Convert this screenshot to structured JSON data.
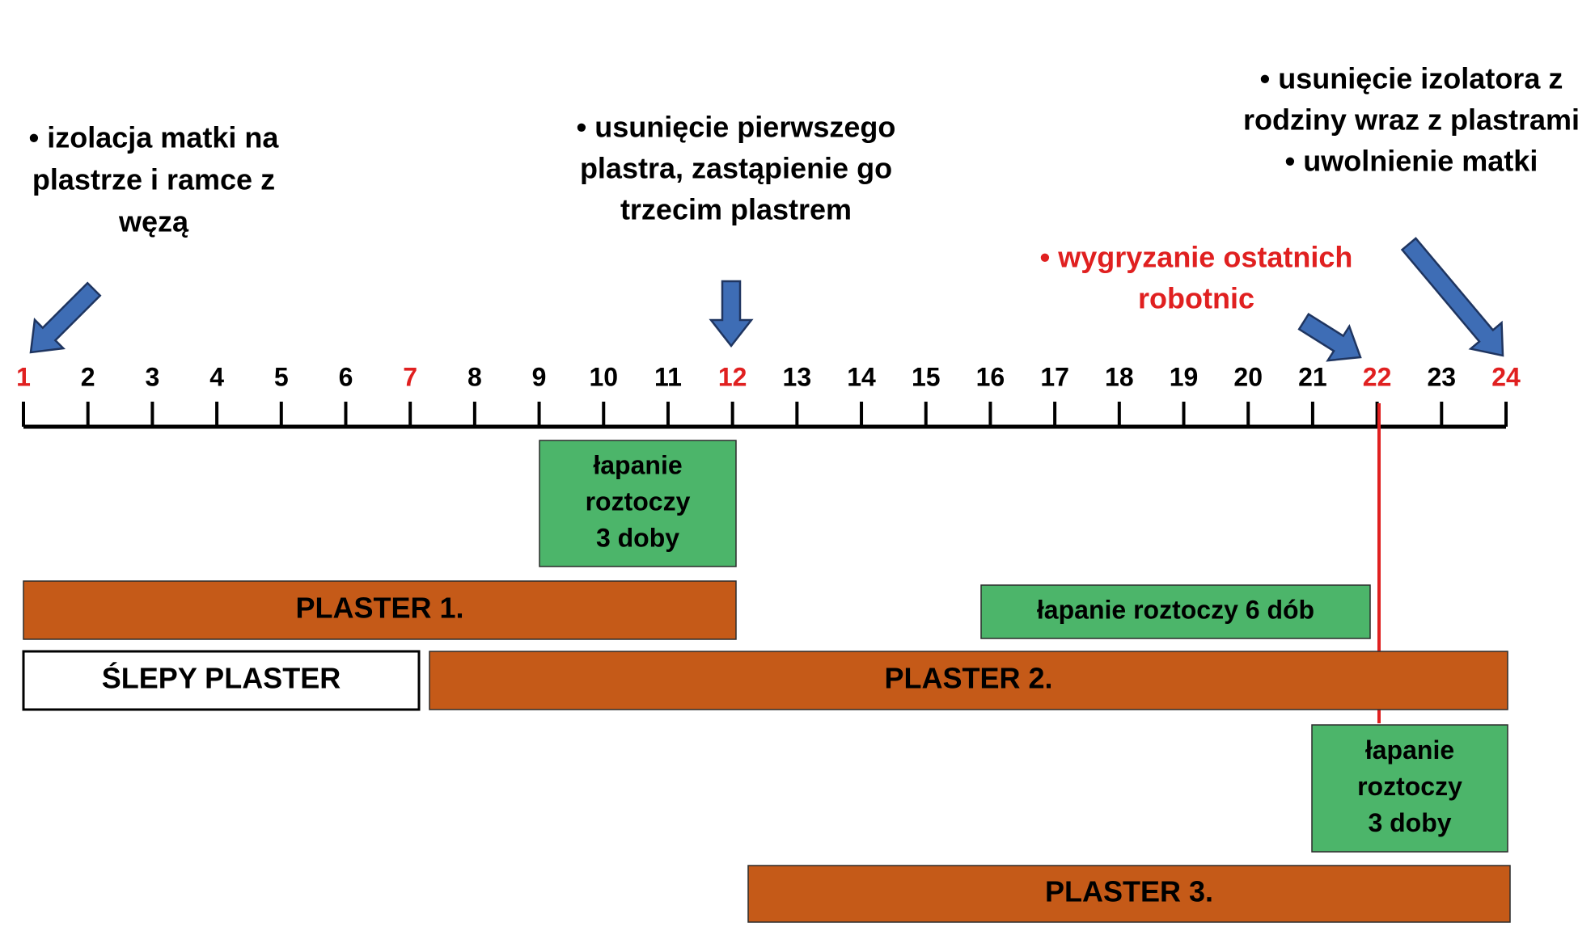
{
  "annotations": [
    {
      "lines": [
        "• izolacja matki na",
        "plastrze i ramce z",
        "węzą"
      ]
    },
    {
      "lines": [
        "• usunięcie pierwszego",
        "plastra, zastąpienie go",
        "trzecim plastrem"
      ]
    },
    {
      "lines": [
        "• wygryzanie ostatnich",
        "robotnic"
      ]
    },
    {
      "lines": [
        "• usunięcie izolatora z",
        "rodziny wraz z plastrami",
        "• uwolnienie matki"
      ]
    }
  ],
  "axis": {
    "ticks": [
      {
        "label": "1",
        "color": "#e02020"
      },
      {
        "label": "2",
        "color": "#000000"
      },
      {
        "label": "3",
        "color": "#000000"
      },
      {
        "label": "4",
        "color": "#000000"
      },
      {
        "label": "5",
        "color": "#000000"
      },
      {
        "label": "6",
        "color": "#000000"
      },
      {
        "label": "7",
        "color": "#e02020"
      },
      {
        "label": "8",
        "color": "#000000"
      },
      {
        "label": "9",
        "color": "#000000"
      },
      {
        "label": "10",
        "color": "#000000"
      },
      {
        "label": "11",
        "color": "#000000"
      },
      {
        "label": "12",
        "color": "#e02020"
      },
      {
        "label": "13",
        "color": "#000000"
      },
      {
        "label": "14",
        "color": "#000000"
      },
      {
        "label": "15",
        "color": "#000000"
      },
      {
        "label": "16",
        "color": "#000000"
      },
      {
        "label": "17",
        "color": "#000000"
      },
      {
        "label": "18",
        "color": "#000000"
      },
      {
        "label": "19",
        "color": "#000000"
      },
      {
        "label": "20",
        "color": "#000000"
      },
      {
        "label": "21",
        "color": "#000000"
      },
      {
        "label": "22",
        "color": "#e02020"
      },
      {
        "label": "23",
        "color": "#000000"
      },
      {
        "label": "24",
        "color": "#e02020"
      }
    ]
  },
  "boxes": [
    {
      "lines": [
        "łapanie",
        "roztoczy",
        "3 doby"
      ]
    },
    {
      "lines": [
        "PLASTER 1."
      ]
    },
    {
      "lines": [
        "łapanie roztoczy 6 dób"
      ]
    },
    {
      "lines": [
        "ŚLEPY PLASTER"
      ]
    },
    {
      "lines": [
        "PLASTER 2."
      ]
    },
    {
      "lines": [
        "łapanie",
        "roztoczy",
        "3 doby"
      ]
    },
    {
      "lines": [
        "PLASTER 3."
      ]
    }
  ]
}
